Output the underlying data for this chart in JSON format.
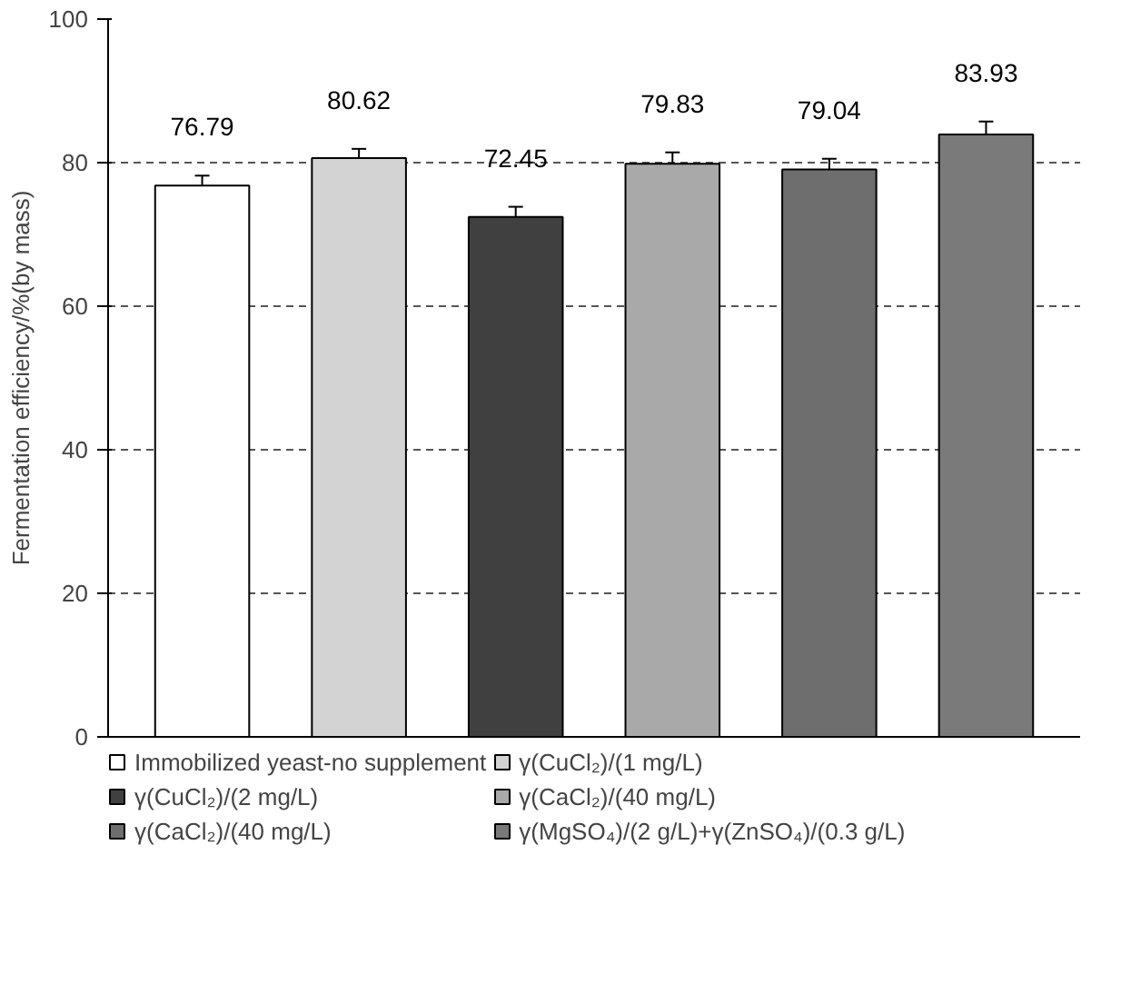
{
  "chart_data": {
    "type": "bar",
    "ylabel": "Fermentation efficiency/%(by mass)",
    "categories": [
      null,
      null,
      null,
      null,
      null,
      null
    ],
    "series": [
      {
        "name": "Immobilized yeast-no supplement",
        "color": "#ffffff",
        "values": [
          76.79,
          null,
          null,
          null,
          null,
          null
        ],
        "errors": [
          1.4,
          null,
          null,
          null,
          null,
          null
        ]
      },
      {
        "name": "γ(CuCl₂)/(1 mg/L)",
        "color": "#d3d3d3",
        "values": [
          null,
          80.62,
          null,
          null,
          null,
          null
        ],
        "errors": [
          null,
          1.3,
          null,
          null,
          null,
          null
        ]
      },
      {
        "name": "γ(CuCl₂)/(2 mg/L)",
        "color": "#404040",
        "values": [
          null,
          null,
          72.45,
          null,
          null,
          null
        ],
        "errors": [
          null,
          null,
          1.4,
          null,
          null,
          null
        ]
      },
      {
        "name": "γ(CaCl₂)/(40 mg/L)",
        "color": "#a9a9a9",
        "values": [
          null,
          null,
          null,
          79.83,
          null,
          null
        ],
        "errors": [
          null,
          null,
          null,
          1.6,
          null,
          null
        ]
      },
      {
        "name": "γ(CaCl₂)/(40 mg/L)",
        "color": "#6e6e6e",
        "values": [
          null,
          null,
          null,
          null,
          79.04,
          null
        ],
        "errors": [
          null,
          null,
          null,
          null,
          1.5,
          null
        ]
      },
      {
        "name": "γ(MgSO₄)/(2 g/L)+γ(ZnSO₄)/(0.3 g/L)",
        "color": "#7a7a7a",
        "values": [
          null,
          null,
          null,
          null,
          null,
          83.93
        ],
        "errors": [
          null,
          null,
          null,
          null,
          null,
          1.8
        ]
      }
    ],
    "ylim": [
      0,
      100
    ],
    "yticks": [
      0,
      20,
      40,
      60,
      80,
      100
    ],
    "grid": "y",
    "legend": "bottom",
    "data_labels": true
  }
}
